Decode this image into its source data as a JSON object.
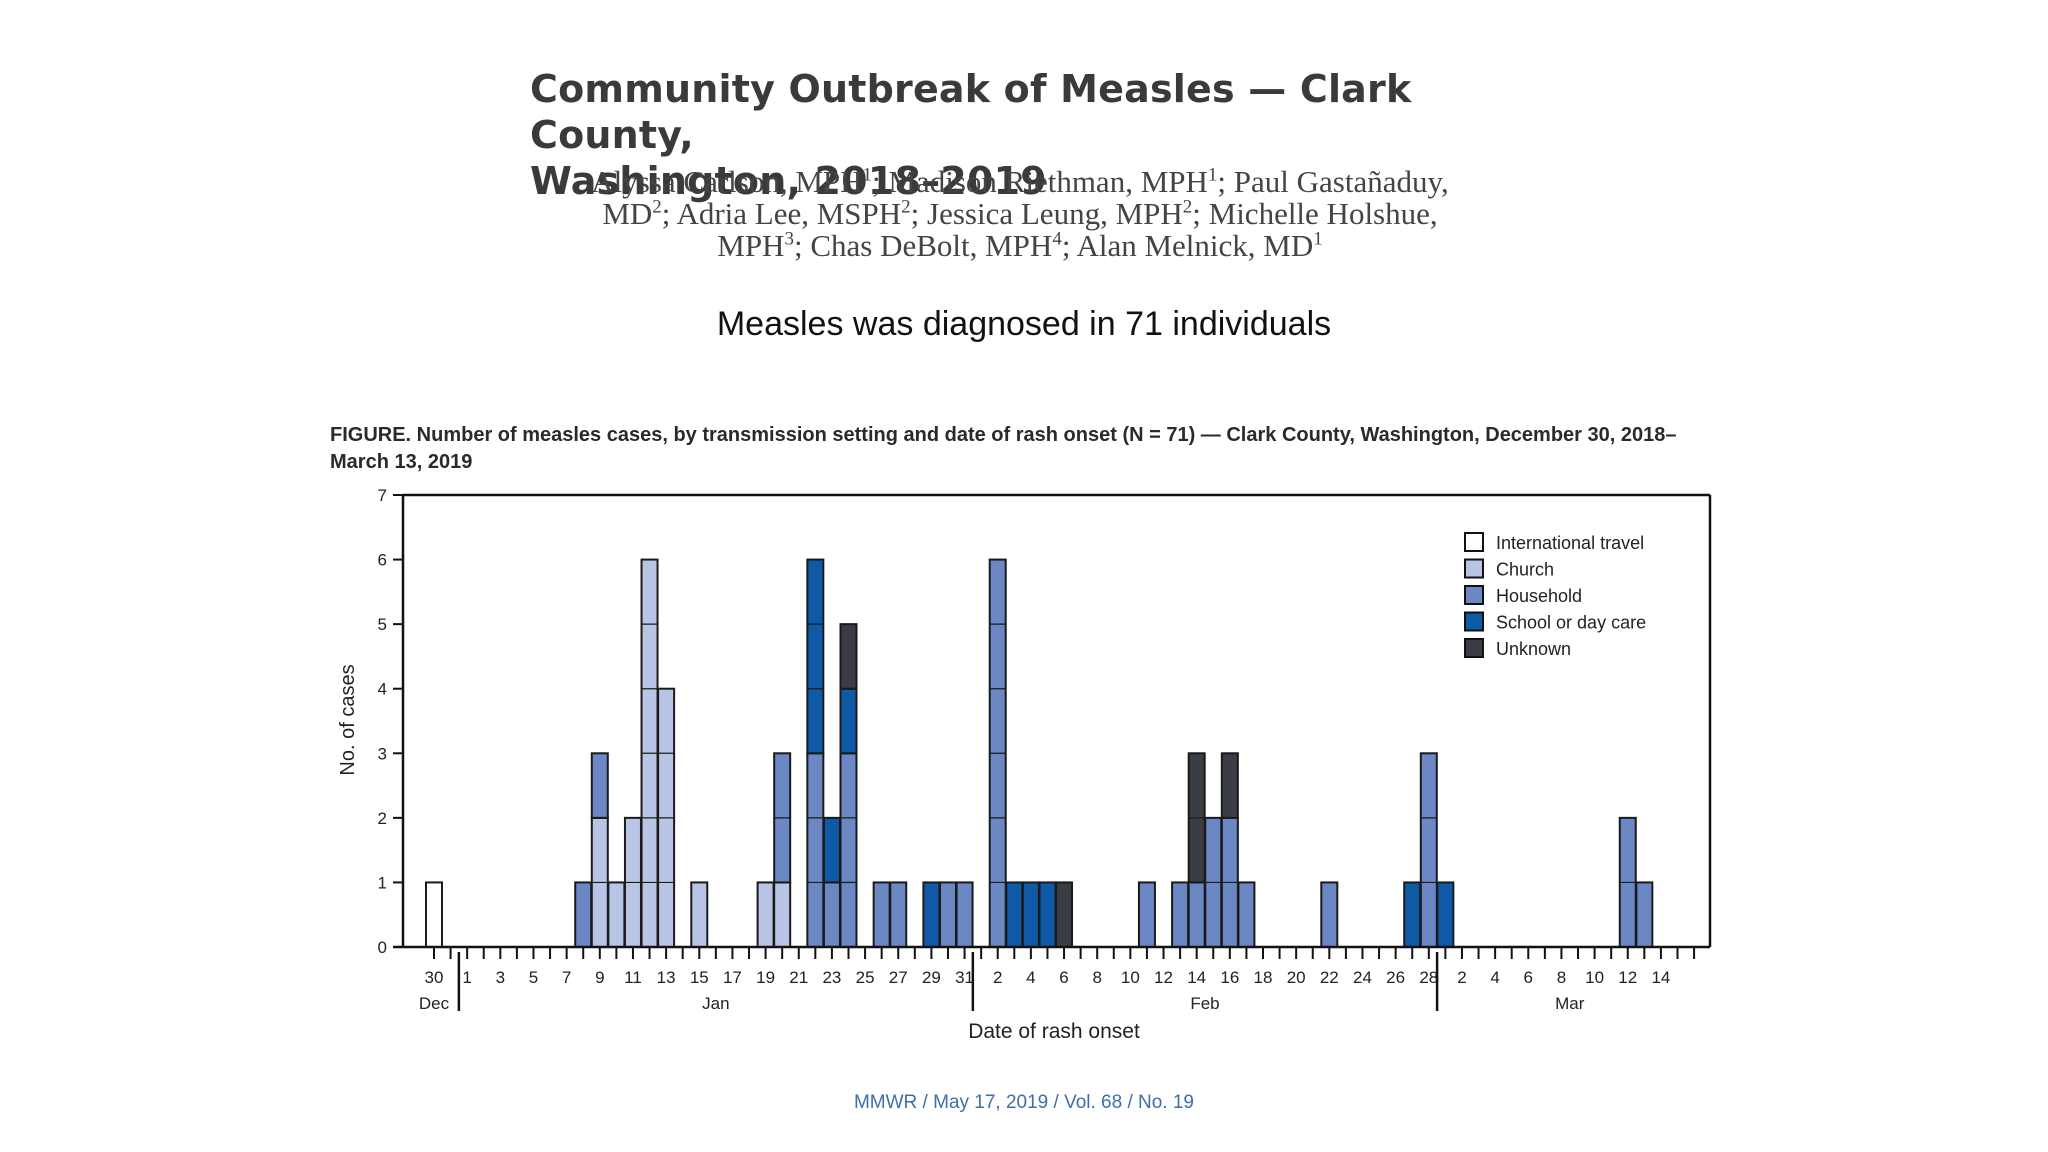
{
  "page": {
    "title_line1": "Community Outbreak of Measles — Clark County,",
    "title_line2": "Washington, 2018–2019",
    "authors_line1": [
      "Alyssa Carlson, MPH",
      "1",
      "; Madison Riethman, MPH",
      "1",
      "; Paul Gastañaduy,"
    ],
    "authors_line2": [
      "MD",
      "2",
      "; Adria Lee, MSPH",
      "2",
      "; Jessica Leung, MPH",
      "2",
      "; Michelle Holshue,"
    ],
    "authors_line3": [
      "MPH",
      "3",
      "; Chas DeBolt, MPH",
      "4",
      "; Alan Melnick, MD",
      "1"
    ],
    "subtitle": "Measles was diagnosed in 71 individuals",
    "figure_caption_line1": "FIGURE. Number of measles cases, by transmission setting and date of rash onset (N = 71) — Clark County, Washington, December 30, 2018–",
    "figure_caption_line2": "March 13, 2019",
    "footer": "MMWR / May 17, 2019 / Vol. 68 / No. 19"
  },
  "colors": {
    "International travel": "#ffffff",
    "Church": "#b9c5e4",
    "Household": "#6b87c4",
    "School or day care": "#0f5aa6",
    "Unknown": "#3a3d44"
  },
  "chart_data": {
    "type": "bar",
    "stacked": true,
    "xlabel": "Date of rash onset",
    "ylabel": "No. of cases",
    "ylim": [
      0,
      7
    ],
    "yticks": [
      0,
      1,
      2,
      3,
      4,
      5,
      6,
      7
    ],
    "legend_placement": "top-right",
    "legend": [
      "International travel",
      "Church",
      "Household",
      "School or day care",
      "Unknown"
    ],
    "dates": [
      "2018-12-30",
      "2018-12-31",
      "2019-01-01",
      "2019-01-02",
      "2019-01-03",
      "2019-01-04",
      "2019-01-05",
      "2019-01-06",
      "2019-01-07",
      "2019-01-08",
      "2019-01-09",
      "2019-01-10",
      "2019-01-11",
      "2019-01-12",
      "2019-01-13",
      "2019-01-14",
      "2019-01-15",
      "2019-01-16",
      "2019-01-17",
      "2019-01-18",
      "2019-01-19",
      "2019-01-20",
      "2019-01-21",
      "2019-01-22",
      "2019-01-23",
      "2019-01-24",
      "2019-01-25",
      "2019-01-26",
      "2019-01-27",
      "2019-01-28",
      "2019-01-29",
      "2019-01-30",
      "2019-01-31",
      "2019-02-01",
      "2019-02-02",
      "2019-02-03",
      "2019-02-04",
      "2019-02-05",
      "2019-02-06",
      "2019-02-07",
      "2019-02-08",
      "2019-02-09",
      "2019-02-10",
      "2019-02-11",
      "2019-02-12",
      "2019-02-13",
      "2019-02-14",
      "2019-02-15",
      "2019-02-16",
      "2019-02-17",
      "2019-02-18",
      "2019-02-19",
      "2019-02-20",
      "2019-02-21",
      "2019-02-22",
      "2019-02-23",
      "2019-02-24",
      "2019-02-25",
      "2019-02-26",
      "2019-02-27",
      "2019-02-28",
      "2019-03-01",
      "2019-03-02",
      "2019-03-03",
      "2019-03-04",
      "2019-03-05",
      "2019-03-06",
      "2019-03-07",
      "2019-03-08",
      "2019-03-09",
      "2019-03-10",
      "2019-03-11",
      "2019-03-12",
      "2019-03-13",
      "2019-03-14",
      "2019-03-15",
      "2019-03-16"
    ],
    "tick_labels": [
      {
        "date": "2018-12-30",
        "label": "30"
      },
      {
        "date": "2019-01-01",
        "label": "1"
      },
      {
        "date": "2019-01-03",
        "label": "3"
      },
      {
        "date": "2019-01-05",
        "label": "5"
      },
      {
        "date": "2019-01-07",
        "label": "7"
      },
      {
        "date": "2019-01-09",
        "label": "9"
      },
      {
        "date": "2019-01-11",
        "label": "11"
      },
      {
        "date": "2019-01-13",
        "label": "13"
      },
      {
        "date": "2019-01-15",
        "label": "15"
      },
      {
        "date": "2019-01-17",
        "label": "17"
      },
      {
        "date": "2019-01-19",
        "label": "19"
      },
      {
        "date": "2019-01-21",
        "label": "21"
      },
      {
        "date": "2019-01-23",
        "label": "23"
      },
      {
        "date": "2019-01-25",
        "label": "25"
      },
      {
        "date": "2019-01-27",
        "label": "27"
      },
      {
        "date": "2019-01-29",
        "label": "29"
      },
      {
        "date": "2019-01-31",
        "label": "31"
      },
      {
        "date": "2019-02-02",
        "label": "2"
      },
      {
        "date": "2019-02-04",
        "label": "4"
      },
      {
        "date": "2019-02-06",
        "label": "6"
      },
      {
        "date": "2019-02-08",
        "label": "8"
      },
      {
        "date": "2019-02-10",
        "label": "10"
      },
      {
        "date": "2019-02-12",
        "label": "12"
      },
      {
        "date": "2019-02-14",
        "label": "14"
      },
      {
        "date": "2019-02-16",
        "label": "16"
      },
      {
        "date": "2019-02-18",
        "label": "18"
      },
      {
        "date": "2019-02-20",
        "label": "20"
      },
      {
        "date": "2019-02-22",
        "label": "22"
      },
      {
        "date": "2019-02-24",
        "label": "24"
      },
      {
        "date": "2019-02-26",
        "label": "26"
      },
      {
        "date": "2019-02-28",
        "label": "28"
      },
      {
        "date": "2019-03-02",
        "label": "2"
      },
      {
        "date": "2019-03-04",
        "label": "4"
      },
      {
        "date": "2019-03-06",
        "label": "6"
      },
      {
        "date": "2019-03-08",
        "label": "8"
      },
      {
        "date": "2019-03-10",
        "label": "10"
      },
      {
        "date": "2019-03-12",
        "label": "12"
      },
      {
        "date": "2019-03-14",
        "label": "14"
      }
    ],
    "months": [
      {
        "label": "Dec",
        "first": "2018-12-30",
        "last": "2018-12-31"
      },
      {
        "label": "Jan",
        "first": "2019-01-01",
        "last": "2019-01-31"
      },
      {
        "label": "Feb",
        "first": "2019-02-01",
        "last": "2019-02-28"
      },
      {
        "label": "Mar",
        "first": "2019-03-01",
        "last": "2019-03-16"
      }
    ],
    "cases": [
      {
        "date": "2018-12-30",
        "International travel": 1
      },
      {
        "date": "2019-01-08",
        "Household": 1
      },
      {
        "date": "2019-01-09",
        "Church": 2,
        "Household": 1
      },
      {
        "date": "2019-01-10",
        "Church": 1
      },
      {
        "date": "2019-01-11",
        "Church": 2
      },
      {
        "date": "2019-01-12",
        "Church": 6
      },
      {
        "date": "2019-01-13",
        "Church": 4
      },
      {
        "date": "2019-01-15",
        "Church": 1
      },
      {
        "date": "2019-01-19",
        "Church": 1
      },
      {
        "date": "2019-01-20",
        "Church": 1,
        "Household": 2
      },
      {
        "date": "2019-01-22",
        "Household": 3,
        "School or day care": 3
      },
      {
        "date": "2019-01-23",
        "Household": 1,
        "School or day care": 1
      },
      {
        "date": "2019-01-24",
        "Household": 3,
        "School or day care": 1,
        "Unknown": 1
      },
      {
        "date": "2019-01-26",
        "Household": 1
      },
      {
        "date": "2019-01-27",
        "Household": 1
      },
      {
        "date": "2019-01-29",
        "School or day care": 1
      },
      {
        "date": "2019-01-30",
        "Household": 1
      },
      {
        "date": "2019-01-31",
        "Household": 1
      },
      {
        "date": "2019-02-02",
        "Household": 6
      },
      {
        "date": "2019-02-03",
        "School or day care": 1
      },
      {
        "date": "2019-02-04",
        "School or day care": 1
      },
      {
        "date": "2019-02-05",
        "School or day care": 1
      },
      {
        "date": "2019-02-06",
        "Unknown": 1
      },
      {
        "date": "2019-02-11",
        "Household": 1
      },
      {
        "date": "2019-02-13",
        "Household": 1
      },
      {
        "date": "2019-02-14",
        "Household": 1,
        "Unknown": 2
      },
      {
        "date": "2019-02-15",
        "Household": 2
      },
      {
        "date": "2019-02-16",
        "Household": 2,
        "Unknown": 1
      },
      {
        "date": "2019-02-17",
        "Household": 1
      },
      {
        "date": "2019-02-22",
        "Household": 1
      },
      {
        "date": "2019-02-27",
        "School or day care": 1
      },
      {
        "date": "2019-02-28",
        "Household": 3
      },
      {
        "date": "2019-03-01",
        "School or day care": 1
      },
      {
        "date": "2019-03-12",
        "Household": 2
      },
      {
        "date": "2019-03-13",
        "Household": 1
      }
    ]
  }
}
